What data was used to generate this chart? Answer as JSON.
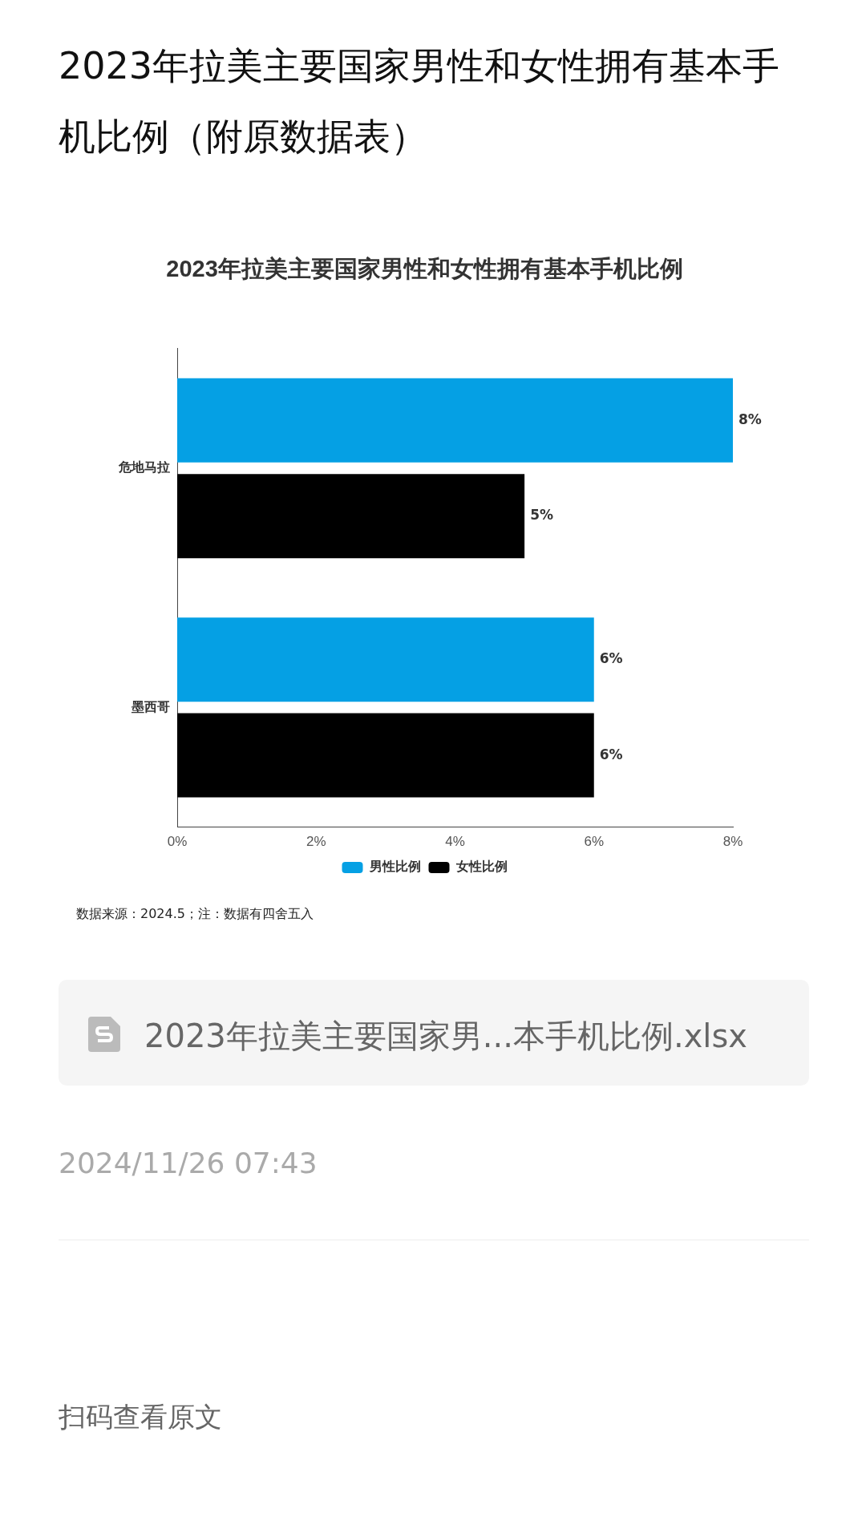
{
  "chart_data": {
    "type": "bar",
    "orientation": "horizontal",
    "title": "2023年拉美主要国家男性和女性拥有基本手机比例",
    "categories": [
      "危地马拉",
      "墨西哥"
    ],
    "series": [
      {
        "name": "男性比例",
        "color": "#05a0e4",
        "values": [
          8,
          6
        ],
        "value_labels": [
          "8%",
          "6%"
        ]
      },
      {
        "name": "女性比例",
        "color": "#000000",
        "values": [
          5,
          6
        ],
        "value_labels": [
          "5%",
          "6%"
        ]
      }
    ],
    "xlim": [
      0,
      8
    ],
    "xticks": [
      {
        "value": 0,
        "label": "0%"
      },
      {
        "value": 2,
        "label": "2%"
      },
      {
        "value": 4,
        "label": "4%"
      },
      {
        "value": 6,
        "label": "6%"
      },
      {
        "value": 8,
        "label": "8%"
      }
    ],
    "legend": "bottom",
    "annotations": [
      "2023年拉美主要国家男性和女性拥有基本手机比例（附原数据表）",
      "数据来源：2024.5；注：数据有四舍五入",
      "2023年拉美主要国家男...本手机比例.xlsx",
      "2024/11/26 07:43",
      "扫码查看原文"
    ]
  }
}
